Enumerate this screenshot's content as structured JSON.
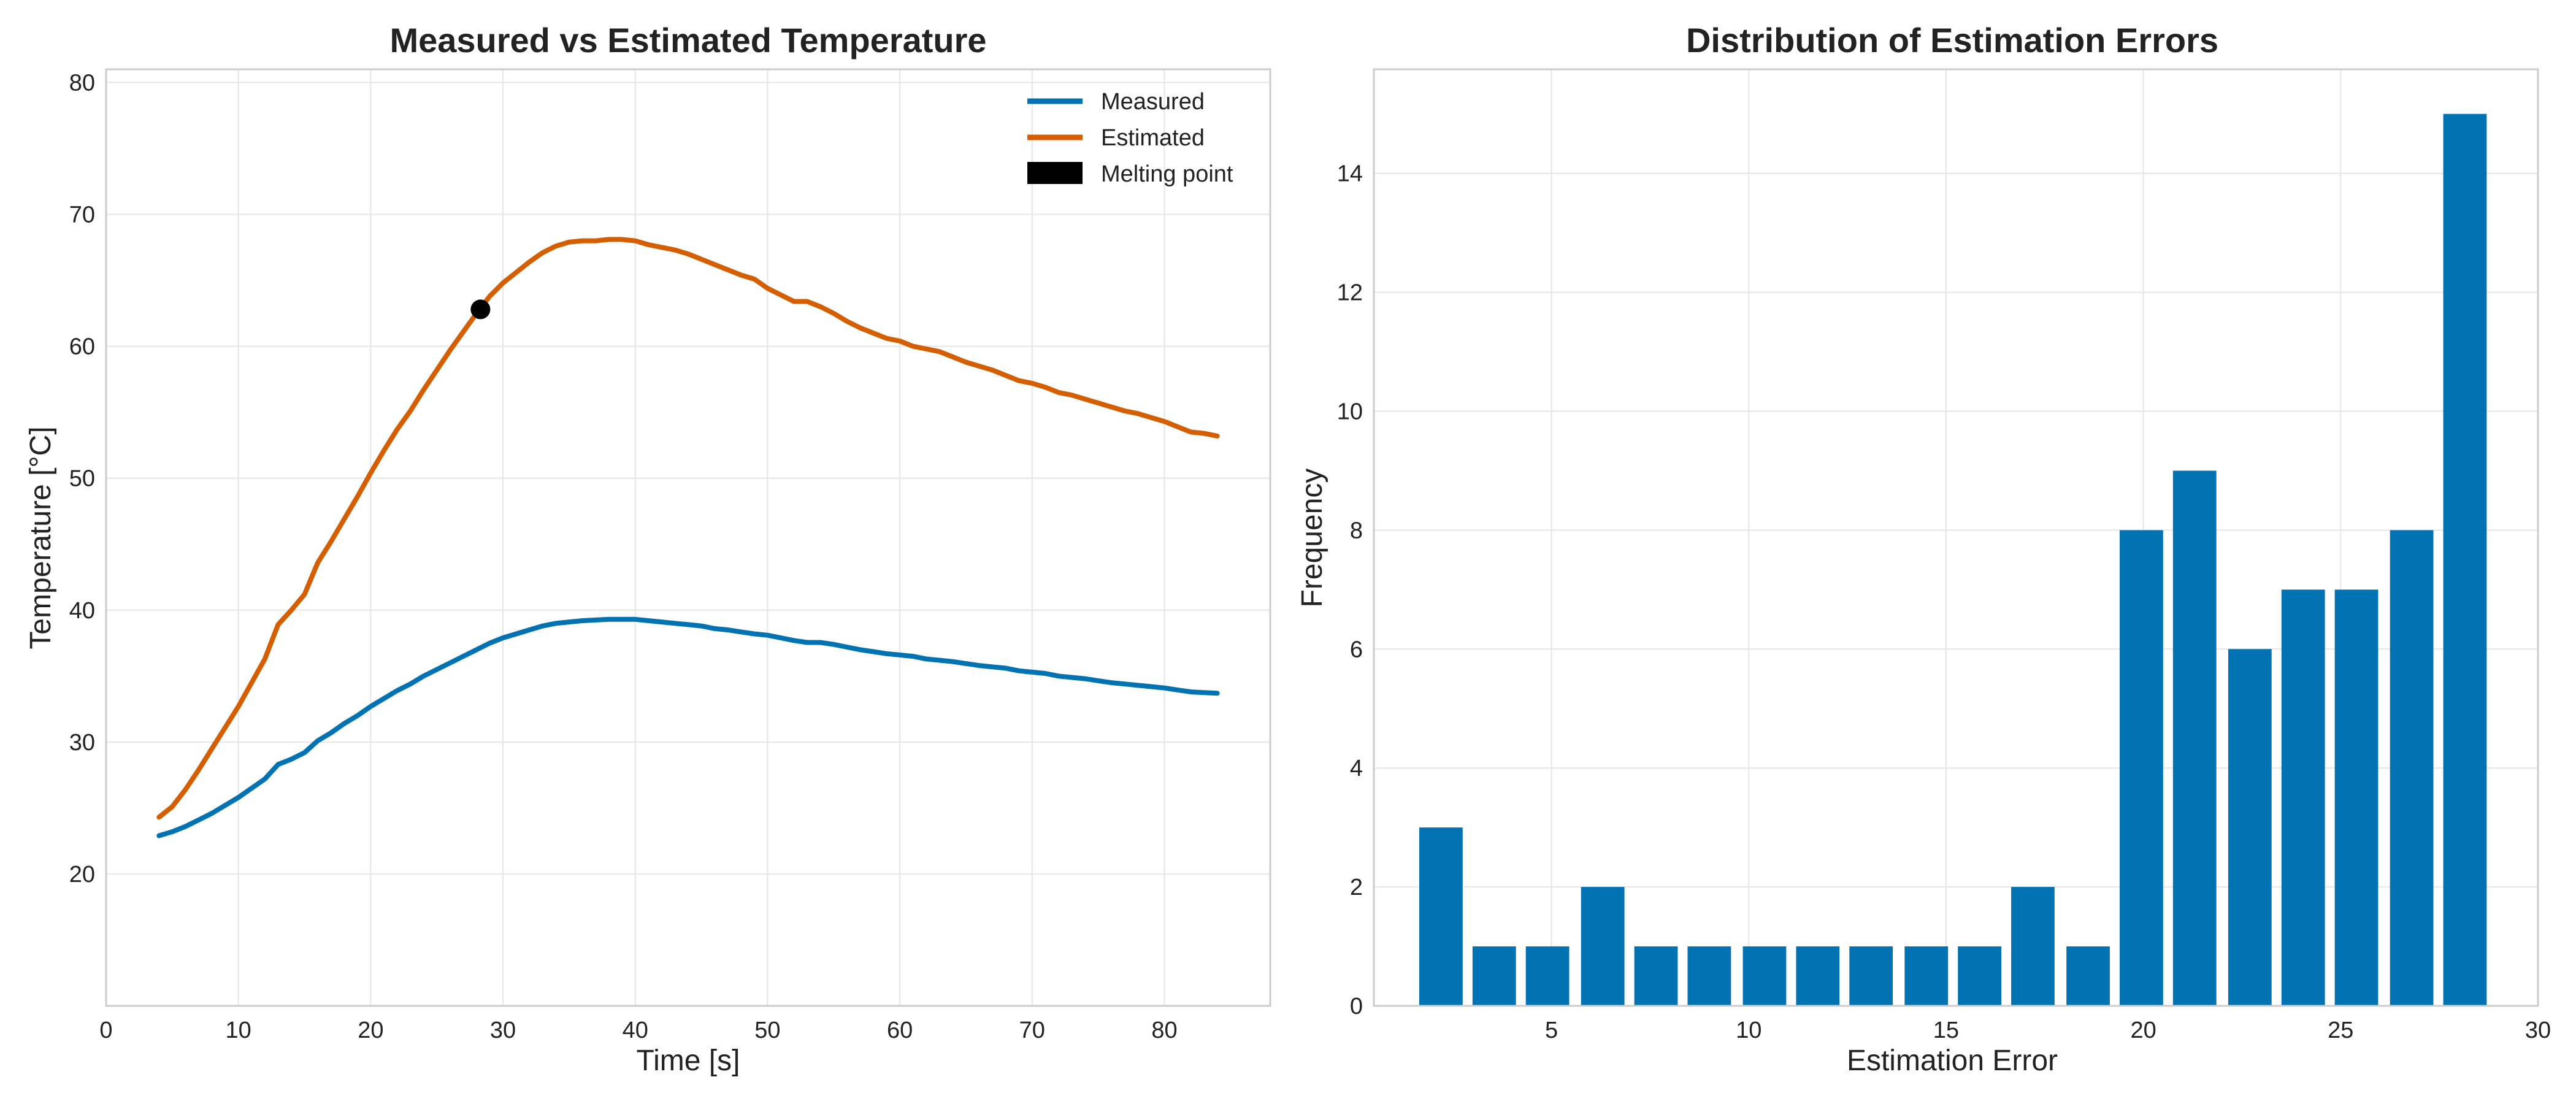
{
  "chart_data": [
    {
      "type": "line",
      "title": "Measured vs Estimated Temperature",
      "xlabel": "Time [s]",
      "ylabel": "Temperature [°C]",
      "xlim": [
        0,
        88
      ],
      "ylim": [
        10,
        81
      ],
      "xticks": [
        0,
        10,
        20,
        30,
        40,
        50,
        60,
        70,
        80
      ],
      "yticks": [
        20,
        30,
        40,
        50,
        60,
        70,
        80
      ],
      "grid": true,
      "legend_position": "top-right",
      "legend": [
        "Measured",
        "Estimated",
        "Melting point"
      ],
      "series": [
        {
          "name": "Measured",
          "color": "#0173b2",
          "x": [
            4,
            5,
            6,
            7,
            8,
            9,
            10,
            11,
            12,
            13,
            14,
            15,
            16,
            17,
            18,
            19,
            20,
            21,
            22,
            23,
            24,
            25,
            26,
            27,
            28,
            29,
            30,
            31,
            32,
            33,
            34,
            35,
            36,
            37,
            38,
            39,
            40,
            41,
            42,
            43,
            44,
            45,
            46,
            47,
            48,
            49,
            50,
            51,
            52,
            53,
            54,
            55,
            56,
            57,
            58,
            59,
            60,
            61,
            62,
            63,
            64,
            65,
            66,
            67,
            68,
            69,
            70,
            71,
            72,
            73,
            74,
            75,
            76,
            77,
            78,
            79,
            80,
            81,
            82,
            83,
            84
          ],
          "y": [
            22.9,
            23.2,
            23.6,
            24.1,
            24.6,
            25.2,
            25.8,
            26.5,
            27.2,
            28.3,
            28.7,
            29.2,
            30.1,
            30.7,
            31.4,
            32.0,
            32.7,
            33.3,
            33.9,
            34.4,
            35.0,
            35.5,
            36.0,
            36.5,
            37.0,
            37.5,
            37.9,
            38.2,
            38.5,
            38.8,
            39.0,
            39.1,
            39.2,
            39.25,
            39.3,
            39.3,
            39.3,
            39.2,
            39.1,
            39.0,
            38.9,
            38.8,
            38.6,
            38.5,
            38.35,
            38.2,
            38.1,
            37.9,
            37.7,
            37.55,
            37.55,
            37.4,
            37.2,
            37.0,
            36.85,
            36.7,
            36.6,
            36.5,
            36.3,
            36.2,
            36.1,
            35.95,
            35.8,
            35.7,
            35.6,
            35.4,
            35.3,
            35.2,
            35.0,
            34.9,
            34.8,
            34.65,
            34.5,
            34.4,
            34.3,
            34.2,
            34.1,
            33.95,
            33.8,
            33.75,
            33.7
          ]
        },
        {
          "name": "Estimated",
          "color": "#d55e00",
          "x": [
            4,
            5,
            6,
            7,
            8,
            9,
            10,
            11,
            12,
            13,
            14,
            15,
            16,
            17,
            18,
            19,
            20,
            21,
            22,
            23,
            24,
            25,
            26,
            27,
            28,
            29,
            30,
            31,
            32,
            33,
            34,
            35,
            36,
            37,
            38,
            39,
            40,
            41,
            42,
            43,
            44,
            45,
            46,
            47,
            48,
            49,
            50,
            51,
            52,
            53,
            54,
            55,
            56,
            57,
            58,
            59,
            60,
            61,
            62,
            63,
            64,
            65,
            66,
            67,
            68,
            69,
            70,
            71,
            72,
            73,
            74,
            75,
            76,
            77,
            78,
            79,
            80,
            81,
            82,
            83,
            84
          ],
          "y": [
            24.3,
            25.1,
            26.4,
            27.9,
            29.5,
            31.1,
            32.7,
            34.5,
            36.3,
            38.9,
            40.0,
            41.2,
            43.6,
            45.2,
            46.9,
            48.6,
            50.4,
            52.1,
            53.7,
            55.1,
            56.7,
            58.2,
            59.7,
            61.1,
            62.5,
            63.8,
            64.8,
            65.6,
            66.4,
            67.1,
            67.6,
            67.9,
            68.0,
            68.0,
            68.1,
            68.1,
            68.0,
            67.7,
            67.5,
            67.3,
            67.0,
            66.6,
            66.2,
            65.8,
            65.4,
            65.1,
            64.4,
            63.9,
            63.4,
            63.4,
            63.0,
            62.5,
            61.9,
            61.4,
            61.0,
            60.6,
            60.4,
            60.0,
            59.8,
            59.6,
            59.2,
            58.8,
            58.5,
            58.2,
            57.8,
            57.4,
            57.2,
            56.9,
            56.5,
            56.3,
            56.0,
            55.7,
            55.4,
            55.1,
            54.9,
            54.6,
            54.3,
            53.9,
            53.5,
            53.4,
            53.2
          ]
        }
      ],
      "markers": [
        {
          "name": "Melting point",
          "x": 28.3,
          "y": 62.8,
          "color": "#000000"
        }
      ]
    },
    {
      "type": "bar",
      "title": "Distribution of Estimation Errors",
      "xlabel": "Estimation Error",
      "ylabel": "Frequency",
      "xlim": [
        0.5,
        30
      ],
      "ylim": [
        0,
        15.75
      ],
      "xticks": [
        5,
        10,
        15,
        20,
        25,
        30
      ],
      "yticks": [
        0,
        2,
        4,
        6,
        8,
        10,
        12,
        14
      ],
      "grid": true,
      "color": "#0173b2",
      "bin_width": 1.375,
      "x": [
        2.2,
        3.55,
        4.9,
        6.3,
        7.65,
        9.0,
        10.4,
        11.75,
        13.1,
        14.5,
        15.85,
        17.2,
        18.6,
        19.95,
        21.3,
        22.7,
        24.05,
        25.4,
        26.8,
        28.15
      ],
      "values": [
        3,
        1,
        1,
        2,
        1,
        1,
        1,
        1,
        1,
        1,
        1,
        2,
        1,
        8,
        9,
        6,
        7,
        7,
        8,
        15
      ]
    }
  ]
}
